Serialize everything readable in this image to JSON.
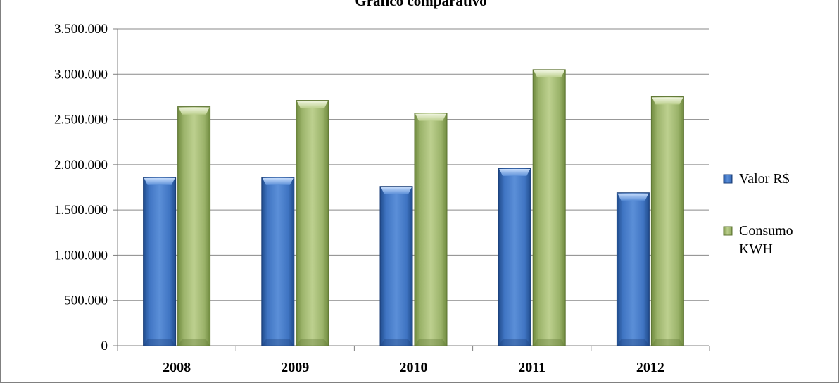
{
  "chart_data": {
    "type": "bar",
    "title": "Gráfico comparativo",
    "categories": [
      "2008",
      "2009",
      "2010",
      "2011",
      "2012"
    ],
    "series": [
      {
        "name": "Valor R$",
        "values": [
          1860000,
          1860000,
          1760000,
          1960000,
          1690000
        ]
      },
      {
        "name": "Consumo KWH",
        "values": [
          2640000,
          2710000,
          2570000,
          3050000,
          2750000
        ]
      }
    ],
    "y_ticks": [
      "0",
      "500.000",
      "1.000.000",
      "1.500.000",
      "2.000.000",
      "2.500.000",
      "3.000.000",
      "3.500.000"
    ],
    "ylim": [
      0,
      3500000
    ],
    "xlabel": "",
    "ylabel": "",
    "grid": true,
    "legend_position": "right",
    "colors": {
      "series_0": "#3d6fb8",
      "series_1": "#9bb36a",
      "gridline": "#8a8a8a",
      "axis": "#7f7f7f"
    }
  }
}
